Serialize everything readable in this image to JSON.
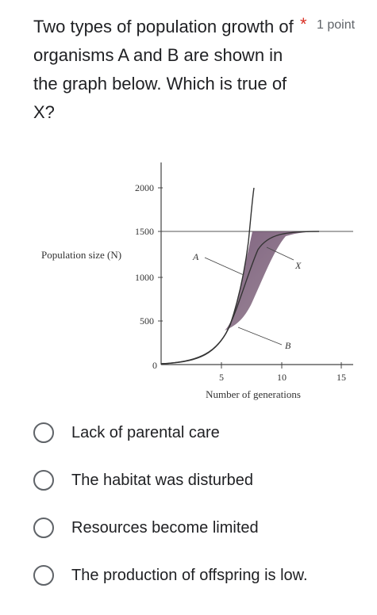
{
  "question": {
    "text": "Two types of population growth of organisms A and B are shown in the graph below. Which is true of X?",
    "required_marker": "*",
    "points": "1 point"
  },
  "chart_data": {
    "type": "line",
    "xlabel": "Number of generations",
    "ylabel": "Population size (N)",
    "xlim": [
      0,
      15
    ],
    "ylim": [
      0,
      2000
    ],
    "x_ticks": [
      "5",
      "10",
      "15"
    ],
    "y_ticks": [
      "0",
      "500",
      "1000",
      "1500",
      "2000"
    ],
    "series": [
      {
        "name": "A",
        "points": [
          [
            9.6,
            0
          ],
          [
            9.7,
            500
          ],
          [
            9.8,
            1000
          ],
          [
            9.9,
            1500
          ],
          [
            10,
            2000
          ]
        ]
      },
      {
        "name": "B",
        "points": [
          [
            0,
            0
          ],
          [
            3,
            30
          ],
          [
            5,
            180
          ],
          [
            6,
            520
          ],
          [
            6.8,
            1050
          ],
          [
            7.5,
            1400
          ],
          [
            8.5,
            1500
          ],
          [
            15,
            1500
          ]
        ]
      }
    ],
    "carrying_capacity": 1500,
    "annotations": [
      "A",
      "B",
      "X"
    ]
  },
  "options": [
    {
      "label": "Lack of parental care"
    },
    {
      "label": "The habitat was disturbed"
    },
    {
      "label": "Resources become limited"
    },
    {
      "label": "The production of offspring is low."
    }
  ],
  "colors": {
    "required": "#d93025",
    "shade": "#7a5a7a",
    "radio": "#5f6368"
  }
}
